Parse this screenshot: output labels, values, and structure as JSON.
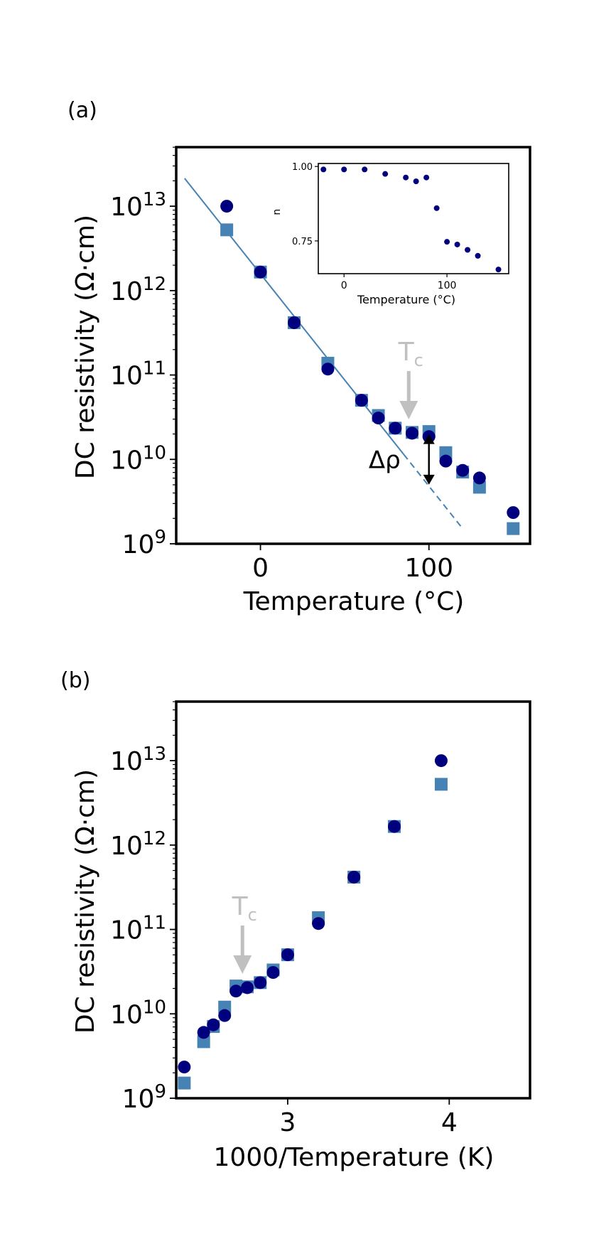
{
  "colors": {
    "circle": "#00007f",
    "square": "#4682b4",
    "fit": "#4682b4",
    "tc": "#c0c0c0",
    "axis": "#000000"
  },
  "chart_data": [
    {
      "type": "scatter",
      "panel_label": "(a)",
      "xlabel": "Temperature (°C)",
      "ylabel": "DC resistivity (Ω·cm)",
      "xlim": [
        -50,
        160
      ],
      "ylog": true,
      "ylim_log10": [
        9,
        13.7
      ],
      "xticks": [
        0,
        100
      ],
      "xtick_labels": [
        "0",
        "100"
      ],
      "yticks_log10": [
        9,
        10,
        11,
        12,
        13
      ],
      "ytick_base": "10",
      "ytick_exponents": [
        "9",
        "10",
        "11",
        "12",
        "13"
      ],
      "series": [
        {
          "name": "circles",
          "marker": "circle",
          "x": [
            -20,
            0,
            20,
            40,
            60,
            70,
            80,
            90,
            100,
            110,
            120,
            130,
            150
          ],
          "log10_y": [
            13.0,
            12.22,
            11.62,
            11.07,
            10.7,
            10.49,
            10.37,
            10.31,
            10.27,
            9.98,
            9.87,
            9.78,
            9.37
          ]
        },
        {
          "name": "squares",
          "marker": "square",
          "x": [
            -20,
            0,
            20,
            40,
            60,
            70,
            80,
            90,
            100,
            110,
            120,
            130,
            150
          ],
          "log10_y": [
            12.72,
            12.22,
            11.62,
            11.14,
            10.7,
            10.52,
            10.37,
            10.32,
            10.33,
            10.08,
            9.85,
            9.67,
            9.18
          ]
        }
      ],
      "fit_line": {
        "x_solid": [
          -45,
          85
        ],
        "x_dashed": [
          85,
          120
        ],
        "log10_y_at": [
          [
            -45,
            13.33
          ],
          [
            120,
            9.18
          ]
        ]
      },
      "annotations": {
        "tc_label": "T",
        "tc_sub": "c",
        "tc_x": 88,
        "delta_label": "Δρ",
        "delta_x": 100,
        "delta_log10_range": [
          9.7,
          10.3
        ]
      },
      "inset": {
        "type": "scatter",
        "xlabel": "Temperature (°C)",
        "ylabel": "n",
        "xlim": [
          -25,
          160
        ],
        "ylim": [
          0.64,
          1.01
        ],
        "xticks": [
          0,
          100
        ],
        "xtick_labels": [
          "0",
          "100"
        ],
        "yticks": [
          0.75,
          1.0
        ],
        "ytick_labels": [
          "0.75",
          "1.00"
        ],
        "x": [
          -20,
          0,
          20,
          40,
          60,
          70,
          80,
          90,
          100,
          110,
          120,
          130,
          150
        ],
        "y": [
          0.99,
          0.99,
          0.99,
          0.975,
          0.963,
          0.95,
          0.963,
          0.86,
          0.747,
          0.738,
          0.72,
          0.7,
          0.654
        ]
      }
    },
    {
      "type": "scatter",
      "panel_label": "(b)",
      "xlabel": "1000/Temperature (K)",
      "ylabel": "DC resistivity  (Ω·cm)",
      "xlim": [
        2.31,
        4.5
      ],
      "ylog": true,
      "ylim_log10": [
        9,
        13.7
      ],
      "xticks": [
        3,
        4
      ],
      "xtick_labels": [
        "3",
        "4"
      ],
      "yticks_log10": [
        9,
        10,
        11,
        12,
        13
      ],
      "ytick_base": "10",
      "ytick_exponents": [
        "9",
        "10",
        "11",
        "12",
        "13"
      ],
      "series": [
        {
          "name": "circles",
          "marker": "circle",
          "x": [
            3.95,
            3.66,
            3.41,
            3.19,
            3.0,
            2.91,
            2.83,
            2.75,
            2.68,
            2.61,
            2.54,
            2.48,
            2.36
          ],
          "log10_y": [
            13.0,
            12.22,
            11.62,
            11.07,
            10.7,
            10.49,
            10.37,
            10.31,
            10.27,
            9.98,
            9.87,
            9.78,
            9.37
          ]
        },
        {
          "name": "squares",
          "marker": "square",
          "x": [
            3.95,
            3.66,
            3.41,
            3.19,
            3.0,
            2.91,
            2.83,
            2.75,
            2.68,
            2.61,
            2.54,
            2.48,
            2.36
          ],
          "log10_y": [
            12.72,
            12.22,
            11.62,
            11.14,
            10.7,
            10.52,
            10.37,
            10.32,
            10.33,
            10.08,
            9.85,
            9.67,
            9.18
          ]
        }
      ],
      "annotations": {
        "tc_label": "T",
        "tc_sub": "c",
        "tc_x": 2.72
      }
    }
  ]
}
